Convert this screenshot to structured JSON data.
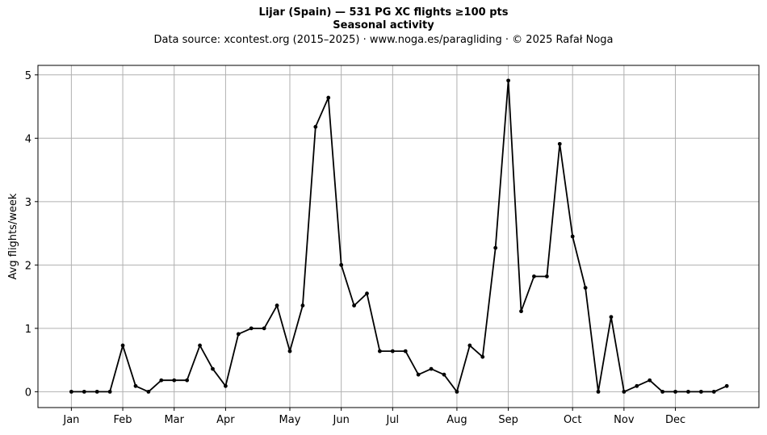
{
  "chart_data": {
    "type": "line",
    "title": "Lijar (Spain)  —  531 PG XC flights ≥100 pts",
    "subtitle": "Seasonal activity",
    "source_line": "Data source: xcontest.org (2015–2025)  ·  www.noga.es/paragliding  ·  © 2025 Rafał Noga",
    "xlabel": "",
    "ylabel": "Avg flights/week",
    "ylim": [
      -0.25,
      5.15
    ],
    "y_ticks": [
      0,
      1,
      2,
      3,
      4,
      5
    ],
    "x_ticks": [
      {
        "label": "Jan",
        "week": 1
      },
      {
        "label": "Feb",
        "week": 5
      },
      {
        "label": "Mar",
        "week": 9
      },
      {
        "label": "Apr",
        "week": 13
      },
      {
        "label": "May",
        "week": 18
      },
      {
        "label": "Jun",
        "week": 22
      },
      {
        "label": "Jul",
        "week": 26
      },
      {
        "label": "Aug",
        "week": 31
      },
      {
        "label": "Sep",
        "week": 35
      },
      {
        "label": "Oct",
        "week": 40
      },
      {
        "label": "Nov",
        "week": 44
      },
      {
        "label": "Dec",
        "week": 48
      }
    ],
    "xlim": [
      -1.6,
      54.5
    ],
    "grid": true,
    "legend": "none",
    "line_color": "#000000",
    "grid_color": "#b0b0b0",
    "x": [
      1,
      2,
      3,
      4,
      5,
      6,
      7,
      8,
      9,
      10,
      11,
      12,
      13,
      14,
      15,
      16,
      17,
      18,
      19,
      20,
      21,
      22,
      23,
      24,
      25,
      26,
      27,
      28,
      29,
      30,
      31,
      32,
      33,
      34,
      35,
      36,
      37,
      38,
      39,
      40,
      41,
      42,
      43,
      44,
      45,
      46,
      47,
      48,
      49,
      50,
      51,
      52
    ],
    "values": [
      0,
      0,
      0,
      0,
      0.73,
      0.09,
      0,
      0.18,
      0.18,
      0.18,
      0.73,
      0.36,
      0.09,
      0.91,
      1.0,
      1.0,
      1.36,
      0.64,
      1.36,
      4.18,
      4.64,
      2.0,
      1.36,
      1.55,
      0.64,
      0.64,
      0.64,
      0.27,
      0.36,
      0.27,
      0,
      0.73,
      0.55,
      2.27,
      4.91,
      1.27,
      1.82,
      1.82,
      3.91,
      2.45,
      1.64,
      0,
      1.18,
      0,
      0.09,
      0.18,
      0,
      0,
      0,
      0,
      0,
      0.09
    ]
  }
}
